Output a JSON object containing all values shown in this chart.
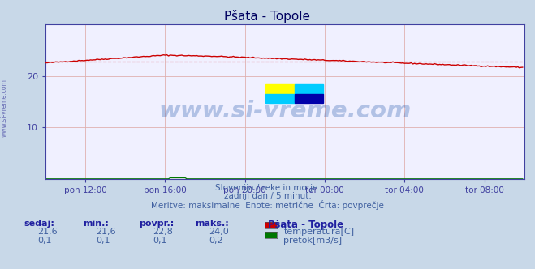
{
  "title": "Pšata - Topole",
  "bg_color": "#c8d8e8",
  "plot_bg_color": "#f0f0ff",
  "grid_color": "#e0b0b0",
  "title_color": "#000060",
  "axis_label_color": "#4040a0",
  "text_color": "#4060a0",
  "watermark": "www.si-vreme.com",
  "subtitle_lines": [
    "Slovenija / reke in morje.",
    "zadnji dan / 5 minut.",
    "Meritve: maksimalne  Enote: metrične  Črta: povprečje"
  ],
  "xlabel_ticks": [
    "pon 12:00",
    "pon 16:00",
    "pon 20:00",
    "tor 00:00",
    "tor 04:00",
    "tor 08:00"
  ],
  "tick_positions": [
    24,
    72,
    120,
    168,
    216,
    264
  ],
  "xlim": [
    0,
    288
  ],
  "ylim": [
    0,
    30
  ],
  "yticks": [
    10,
    20
  ],
  "avg_line_value": 22.8,
  "avg_line_color": "#cc0000",
  "temp_line_color": "#cc0000",
  "flow_line_color": "#007700",
  "legend_title": "Pšata - Topole",
  "legend_items": [
    {
      "label": "temperatura[C]",
      "color": "#cc0000"
    },
    {
      "label": "pretok[m3/s]",
      "color": "#007700"
    }
  ],
  "stats_headers": [
    "sedaj:",
    "min.:",
    "povpr.:",
    "maks.:"
  ],
  "stats_temp": [
    "21,6",
    "21,6",
    "22,8",
    "24,0"
  ],
  "stats_flow": [
    "0,1",
    "0,1",
    "0,1",
    "0,2"
  ]
}
